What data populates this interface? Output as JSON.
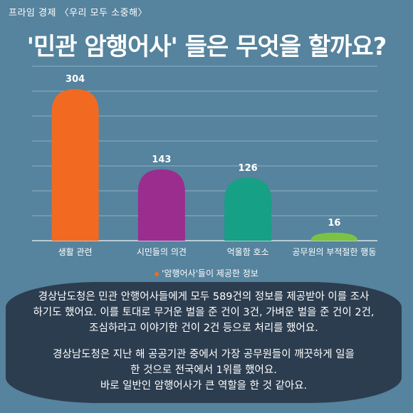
{
  "header": {
    "brand": "프라임 경제 〈우리 모두 소중해〉",
    "title": "'민관 암행어사' 들은 무엇을 할까요?"
  },
  "chart_data": {
    "type": "bar",
    "categories": [
      "생활 관련",
      "시민들의 의견",
      "억울함 호소",
      "공무원의 부적절한 행동"
    ],
    "values": [
      304,
      143,
      126,
      16
    ],
    "colors": [
      "#f26a21",
      "#9b2d8e",
      "#16a085",
      "#7cc243"
    ],
    "title": "'민관 암행어사' 들은 무엇을 할까요?",
    "ylim": [
      0,
      350
    ],
    "grid": true,
    "legend": "'암행어사'들이 제공한 정보",
    "legend_color": "#f26a21",
    "legend_position": "bottom"
  },
  "summary": {
    "paragraph1": "경상남도청은 민관 안행어사들에게 모두 589건의 정보를 제공받아 이를 조사\n하기도 했어요. 이를 토대로 무거운 벌을 준 건이 3건, 가벼운 벌을 준 건이 2건,\n조심하라고 이야기한 건이 2건 등으로 처리를 했어요.",
    "paragraph2": "경상남도청은 지난 해 공공기관 중에서 가장 공무원들이 깨끗하게 일을\n한 것으로 전국에서 1위를 했어요.\n바로 일반인 암행어사가 큰 역할을 한 것 같아요."
  }
}
